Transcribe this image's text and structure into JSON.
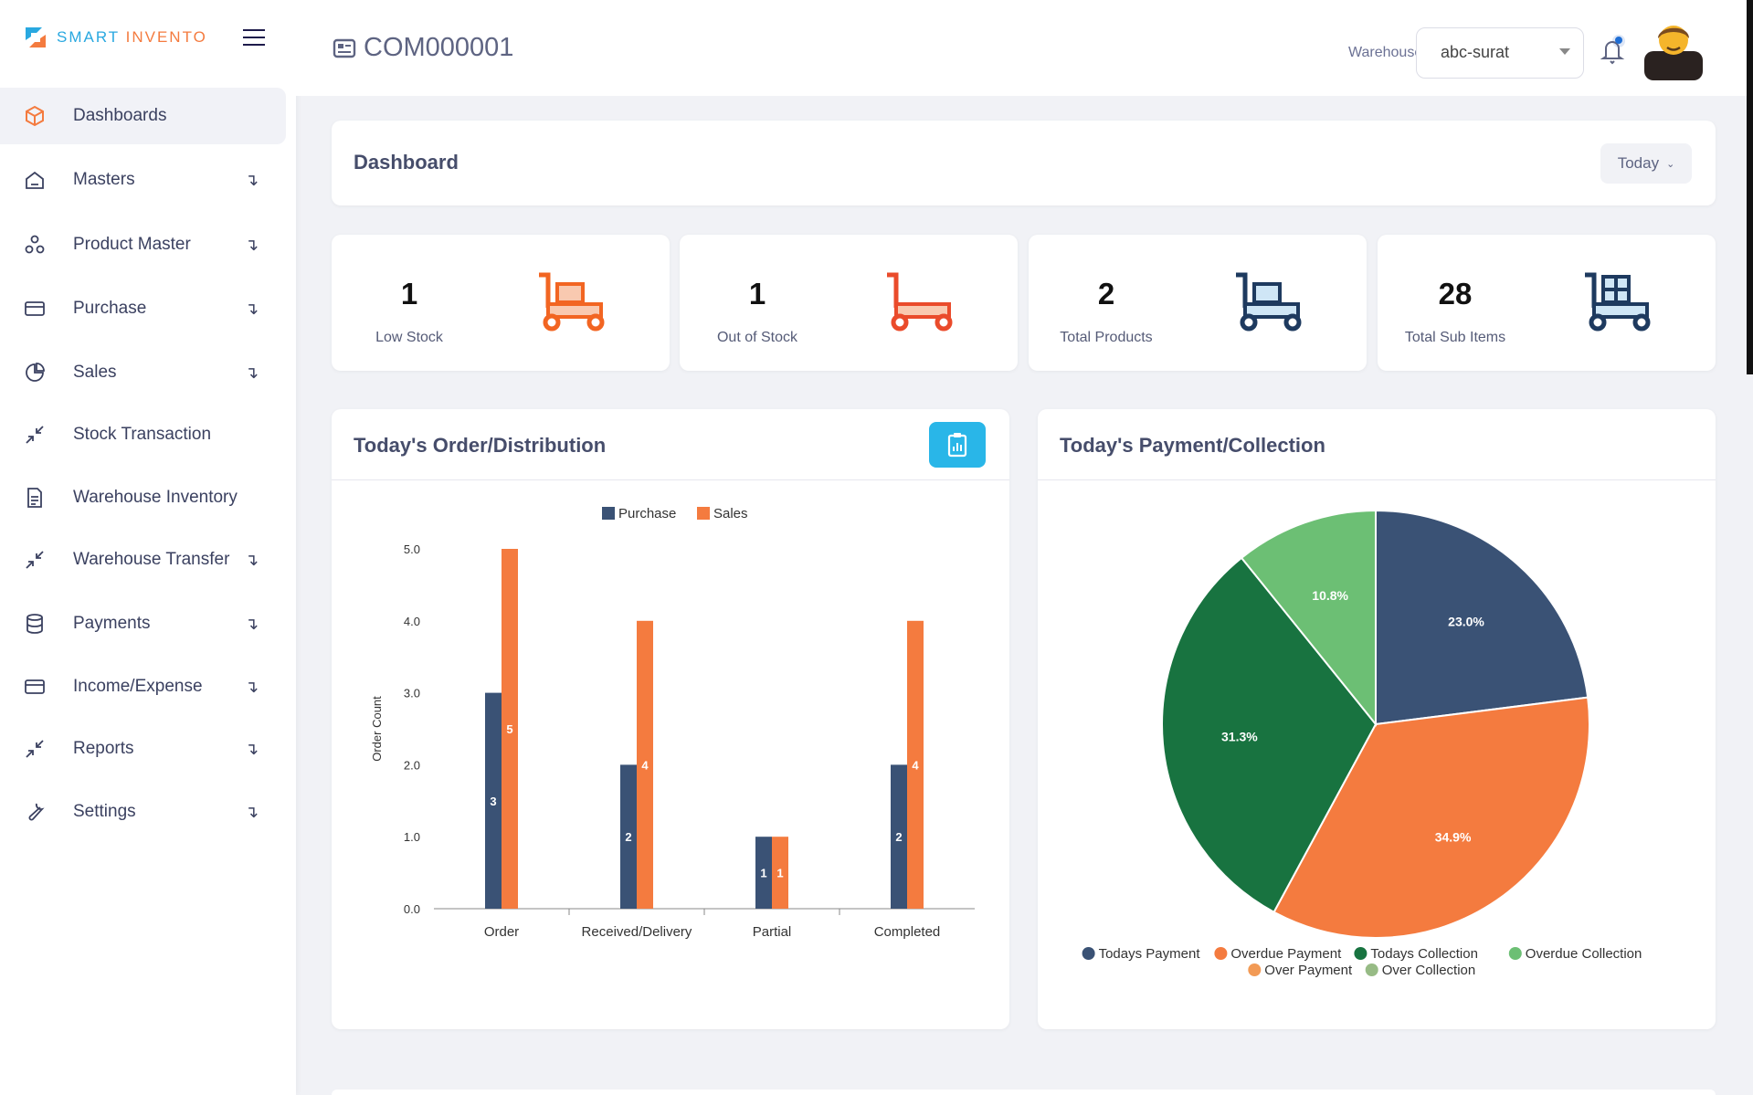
{
  "brand": {
    "part1": "SMART",
    "part2": "INVENTO"
  },
  "sidebar": {
    "items": [
      {
        "label": "Dashboards",
        "icon": "box-icon",
        "expandable": false,
        "active": true
      },
      {
        "label": "Masters",
        "icon": "home-icon",
        "expandable": true
      },
      {
        "label": "Product Master",
        "icon": "nodes-icon",
        "expandable": true
      },
      {
        "label": "Purchase",
        "icon": "card-icon",
        "expandable": true
      },
      {
        "label": "Sales",
        "icon": "pie-icon",
        "expandable": true
      },
      {
        "label": "Stock Transaction",
        "icon": "compress-icon",
        "expandable": false
      },
      {
        "label": "Warehouse Inventory",
        "icon": "document-icon",
        "expandable": false
      },
      {
        "label": "Warehouse Transfer",
        "icon": "compress-icon",
        "expandable": true
      },
      {
        "label": "Payments",
        "icon": "database-icon",
        "expandable": true
      },
      {
        "label": "Income/Expense",
        "icon": "card-icon",
        "expandable": true
      },
      {
        "label": "Reports",
        "icon": "compress-icon",
        "expandable": true
      },
      {
        "label": "Settings",
        "icon": "wrench-icon",
        "expandable": true
      }
    ]
  },
  "header": {
    "company": "COM000001",
    "warehouse_label": "Warehouse",
    "warehouse_value": "abc-surat"
  },
  "dashboard": {
    "title": "Dashboard",
    "period": "Today"
  },
  "stats": [
    {
      "value": "1",
      "label": "Low Stock",
      "color": "#f26522"
    },
    {
      "value": "1",
      "label": "Out of Stock",
      "color": "#ea4b2b"
    },
    {
      "value": "2",
      "label": "Total Products",
      "color": "#1e3a5f"
    },
    {
      "value": "28",
      "label": "Total Sub Items",
      "color": "#1e3a5f"
    }
  ],
  "order_card": {
    "title": "Today's Order/Distribution"
  },
  "payment_card": {
    "title": "Today's Payment/Collection"
  },
  "chart_data": [
    {
      "type": "bar",
      "title": "",
      "ylabel": "Order Count",
      "xlabel": "",
      "ylim": [
        0,
        5
      ],
      "yticks": [
        "0.0",
        "1.0",
        "2.0",
        "3.0",
        "4.0",
        "5.0"
      ],
      "categories": [
        "Order",
        "Received/Delivery",
        "Partial",
        "Completed"
      ],
      "legend": "top",
      "series": [
        {
          "name": "Purchase",
          "color": "#3a5275",
          "values": [
            3,
            2,
            1,
            2
          ]
        },
        {
          "name": "Sales",
          "color": "#f47b3f",
          "values": [
            5,
            4,
            1,
            4
          ]
        }
      ]
    },
    {
      "type": "pie",
      "title": "",
      "legend": "bottom",
      "slices": [
        {
          "name": "Todays Payment",
          "value": 23.0,
          "label": "23.0%",
          "color": "#3a5275"
        },
        {
          "name": "Overdue Payment",
          "value": 34.9,
          "label": "34.9%",
          "color": "#f47b3f"
        },
        {
          "name": "Todays Collection",
          "value": 31.3,
          "label": "31.3%",
          "color": "#187340"
        },
        {
          "name": "Overdue Collection",
          "value": 10.8,
          "label": "10.8%",
          "color": "#6cbf74"
        },
        {
          "name": "Over Payment",
          "value": 0,
          "label": "",
          "color": "#f29a55"
        },
        {
          "name": "Over Collection",
          "value": 0,
          "label": "",
          "color": "#97bb85"
        }
      ]
    }
  ]
}
